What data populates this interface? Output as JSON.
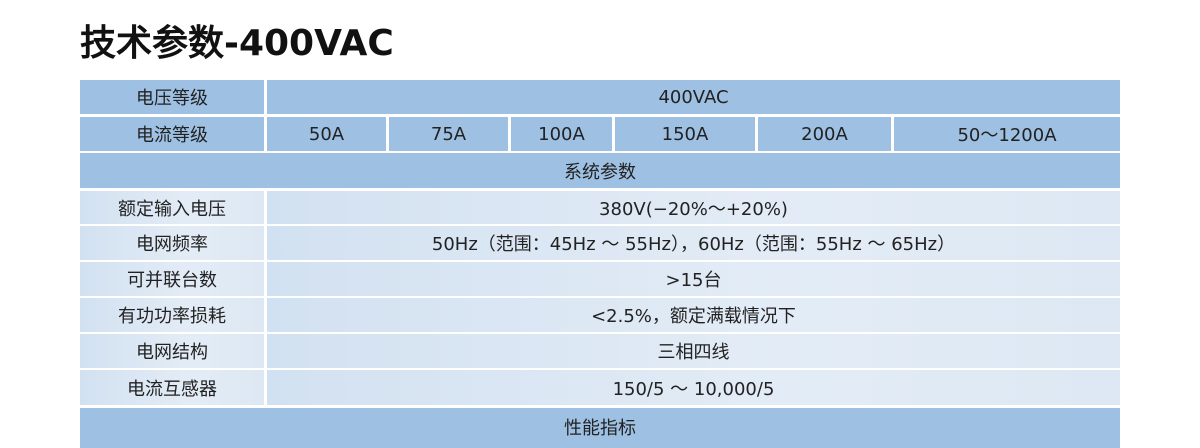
{
  "title": "技术参数-400VAC",
  "voltage_level": {
    "label": "电压等级",
    "value": "400VAC"
  },
  "current_level": {
    "label": "电流等级",
    "values": [
      "50A",
      "75A",
      "100A",
      "150A",
      "200A",
      "50～1200A"
    ]
  },
  "system_section": "系统参数",
  "rows": [
    {
      "label": "额定输入电压",
      "value": "380V(−20%～+20%)"
    },
    {
      "label": "电网频率",
      "value": "50Hz（范围：45Hz ～ 55Hz），60Hz（范围：55Hz ～ 65Hz）"
    },
    {
      "label": "可并联台数",
      "value": ">15台"
    },
    {
      "label": "有功功率损耗",
      "value": "<2.5%，额定满载情况下"
    },
    {
      "label": "电网结构",
      "value": "三相四线"
    },
    {
      "label": "电流互感器",
      "value": "150/5 ～ 10,000/5"
    }
  ],
  "performance_section": "性能指标"
}
